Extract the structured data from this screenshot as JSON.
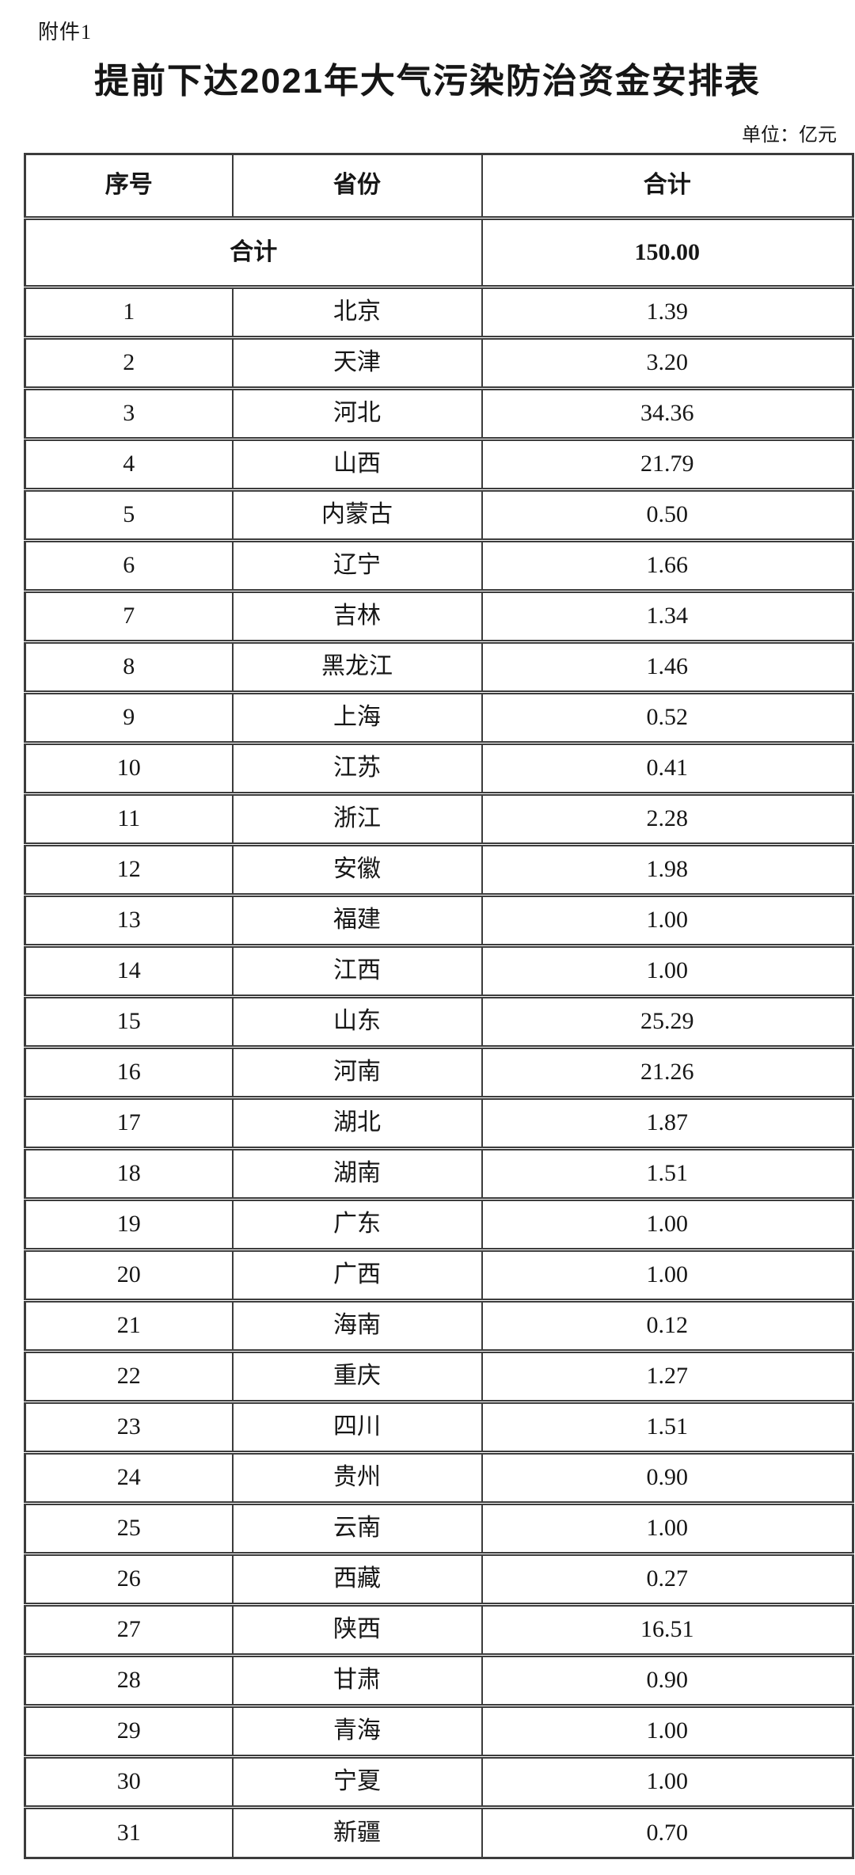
{
  "page": {
    "attachment_label": "附件1",
    "title": "提前下达2021年大气污染防治资金安排表",
    "unit_note": "单位：亿元"
  },
  "table": {
    "columns": [
      "序号",
      "省份",
      "合计"
    ],
    "total_row": {
      "label": "合计",
      "value": "150.00"
    },
    "rows": [
      {
        "no": "1",
        "province": "北京",
        "amount": "1.39"
      },
      {
        "no": "2",
        "province": "天津",
        "amount": "3.20"
      },
      {
        "no": "3",
        "province": "河北",
        "amount": "34.36"
      },
      {
        "no": "4",
        "province": "山西",
        "amount": "21.79"
      },
      {
        "no": "5",
        "province": "内蒙古",
        "amount": "0.50"
      },
      {
        "no": "6",
        "province": "辽宁",
        "amount": "1.66"
      },
      {
        "no": "7",
        "province": "吉林",
        "amount": "1.34"
      },
      {
        "no": "8",
        "province": "黑龙江",
        "amount": "1.46"
      },
      {
        "no": "9",
        "province": "上海",
        "amount": "0.52"
      },
      {
        "no": "10",
        "province": "江苏",
        "amount": "0.41"
      },
      {
        "no": "11",
        "province": "浙江",
        "amount": "2.28"
      },
      {
        "no": "12",
        "province": "安徽",
        "amount": "1.98"
      },
      {
        "no": "13",
        "province": "福建",
        "amount": "1.00"
      },
      {
        "no": "14",
        "province": "江西",
        "amount": "1.00"
      },
      {
        "no": "15",
        "province": "山东",
        "amount": "25.29"
      },
      {
        "no": "16",
        "province": "河南",
        "amount": "21.26"
      },
      {
        "no": "17",
        "province": "湖北",
        "amount": "1.87"
      },
      {
        "no": "18",
        "province": "湖南",
        "amount": "1.51"
      },
      {
        "no": "19",
        "province": "广东",
        "amount": "1.00"
      },
      {
        "no": "20",
        "province": "广西",
        "amount": "1.00"
      },
      {
        "no": "21",
        "province": "海南",
        "amount": "0.12"
      },
      {
        "no": "22",
        "province": "重庆",
        "amount": "1.27"
      },
      {
        "no": "23",
        "province": "四川",
        "amount": "1.51"
      },
      {
        "no": "24",
        "province": "贵州",
        "amount": "0.90"
      },
      {
        "no": "25",
        "province": "云南",
        "amount": "1.00"
      },
      {
        "no": "26",
        "province": "西藏",
        "amount": "0.27"
      },
      {
        "no": "27",
        "province": "陕西",
        "amount": "16.51"
      },
      {
        "no": "28",
        "province": "甘肃",
        "amount": "0.90"
      },
      {
        "no": "29",
        "province": "青海",
        "amount": "1.00"
      },
      {
        "no": "30",
        "province": "宁夏",
        "amount": "1.00"
      },
      {
        "no": "31",
        "province": "新疆",
        "amount": "0.70"
      }
    ]
  }
}
